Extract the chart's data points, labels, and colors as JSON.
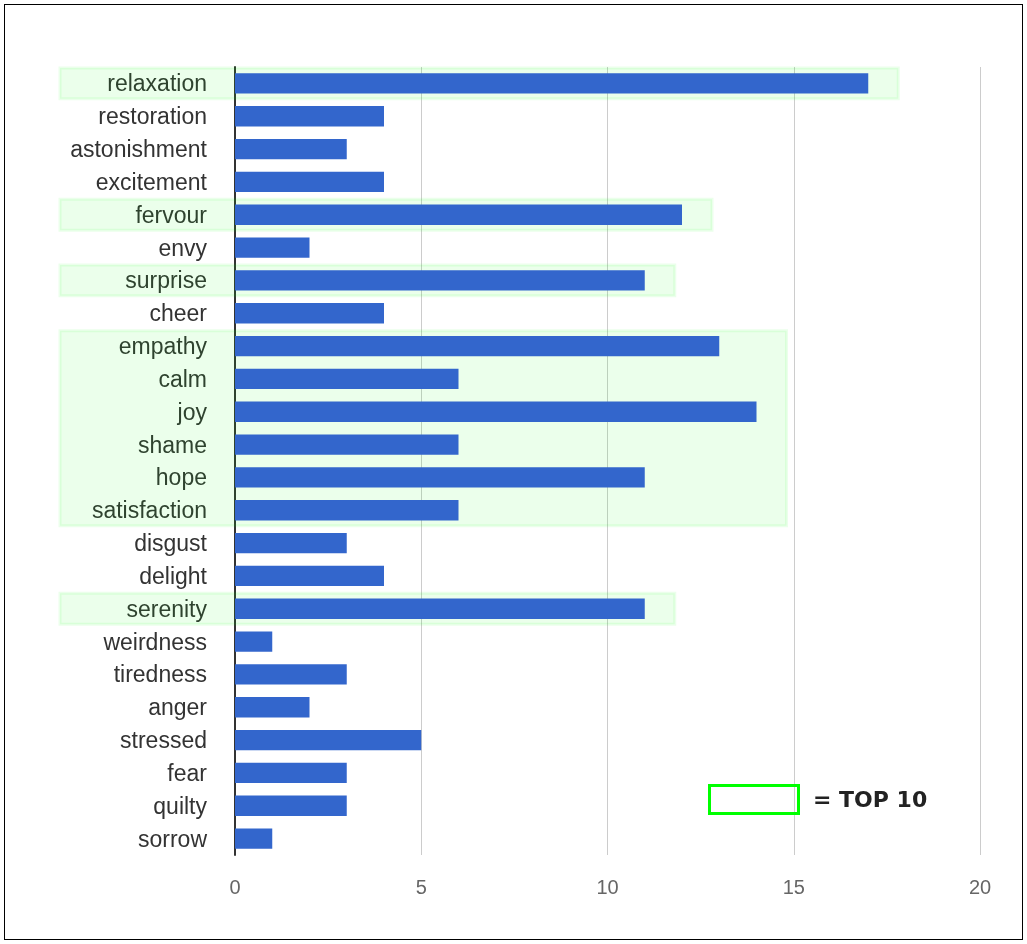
{
  "chart_data": {
    "type": "bar",
    "orientation": "horizontal",
    "categories": [
      "relaxation",
      "restoration",
      "astonishment",
      "excitement",
      "fervour",
      "envy",
      "surprise",
      "cheer",
      "empathy",
      "calm",
      "joy",
      "shame",
      "hope",
      "satisfaction",
      "disgust",
      "delight",
      "serenity",
      "weirdness",
      "tiredness",
      "anger",
      "stressed",
      "fear",
      "quilty",
      "sorrow"
    ],
    "values": [
      17,
      4,
      3,
      4,
      12,
      2,
      11,
      4,
      13,
      6,
      14,
      6,
      11,
      6,
      3,
      4,
      11,
      1,
      3,
      2,
      5,
      3,
      3,
      1
    ],
    "color": "#3366cc",
    "xlim": [
      0,
      20
    ],
    "xticks": [
      0,
      5,
      10,
      15,
      20
    ],
    "grid": "x",
    "bands": [
      {
        "axis": "y",
        "from": "relaxation",
        "to": "relaxation",
        "color": "#00ff00"
      },
      {
        "axis": "y",
        "from": "fervour",
        "to": "fervour",
        "color": "#00ff00"
      },
      {
        "axis": "y",
        "from": "surprise",
        "to": "surprise",
        "color": "#00ff00"
      },
      {
        "axis": "y",
        "from": "empathy",
        "to": "satisfaction",
        "color": "#00ff00"
      },
      {
        "axis": "y",
        "from": "serenity",
        "to": "serenity",
        "color": "#00ff00"
      }
    ],
    "annotations": [
      "= TOP 10"
    ]
  }
}
